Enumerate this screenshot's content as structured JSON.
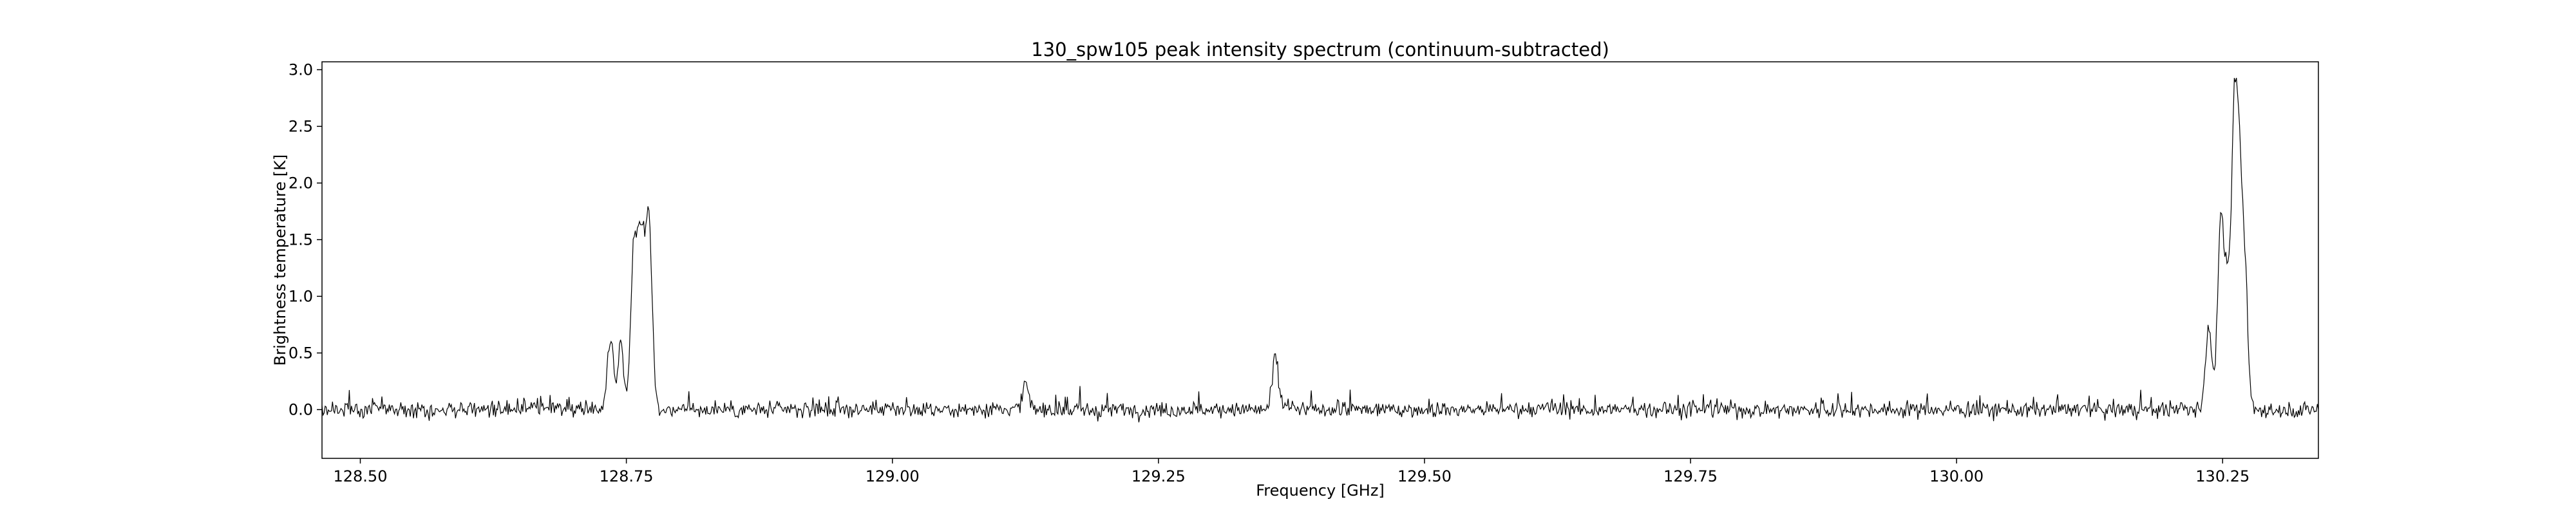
{
  "chart_data": {
    "type": "line",
    "title": "130_spw105 peak intensity spectrum (continuum-subtracted)",
    "xlabel": "Frequency [GHz]",
    "ylabel": "Brightness temperature [K]",
    "xlim": [
      128.464,
      130.34
    ],
    "ylim": [
      -0.43,
      3.07
    ],
    "xticks": [
      128.5,
      128.75,
      129.0,
      129.25,
      129.5,
      129.75,
      130.0,
      130.25
    ],
    "xtick_labels": [
      "128.50",
      "128.75",
      "129.00",
      "129.25",
      "129.50",
      "129.75",
      "130.00",
      "130.25"
    ],
    "yticks": [
      0.0,
      0.5,
      1.0,
      1.5,
      2.0,
      2.5,
      3.0
    ],
    "ytick_labels": [
      "0.0",
      "0.5",
      "1.0",
      "1.5",
      "2.0",
      "2.5",
      "3.0"
    ],
    "grid": false,
    "legend": "none",
    "line_color": "#000000",
    "series": [
      {
        "x_start": 128.464,
        "x_end": 130.34,
        "n_points": 1900,
        "baseline_rms": 0.05,
        "features": [
          {
            "center": 128.735,
            "peak": 0.65
          },
          {
            "center": 128.745,
            "peak": 0.6
          },
          {
            "center": 128.757,
            "peak": 1.4
          },
          {
            "center": 128.763,
            "peak": 1.35
          },
          {
            "center": 128.772,
            "peak": 1.3
          },
          {
            "center": 128.768,
            "peak": 0.9
          },
          {
            "center": 129.125,
            "peak": 0.22
          },
          {
            "center": 129.36,
            "peak": 0.47
          },
          {
            "center": 130.237,
            "peak": 0.75
          },
          {
            "center": 130.248,
            "peak": 1.6
          },
          {
            "center": 130.254,
            "peak": 1.05
          },
          {
            "center": 130.261,
            "peak": 2.48
          },
          {
            "center": 130.266,
            "peak": 1.7
          },
          {
            "center": 130.271,
            "peak": 1.05
          }
        ]
      }
    ]
  }
}
